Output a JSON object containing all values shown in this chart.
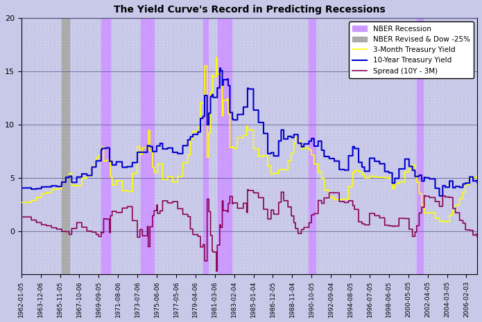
{
  "title": "The Yield Curve's Record in Predicting Recessions",
  "background_color": "#c8c8e8",
  "plot_background": "#c8c8e8",
  "ylim": [
    -4,
    20
  ],
  "yticks": [
    0,
    5,
    10,
    15,
    20
  ],
  "recession_color": "#cc99ff",
  "revised_recession_color": "#aaaaaa",
  "line_3m_color": "#ffff00",
  "line_10y_color": "#0000cc",
  "line_spread_color": "#880055",
  "legend_labels": [
    "NBER Recession",
    "NBER Revised & Dow -25%",
    "3-Month Treasury Yield",
    "10-Year Treasury Yield",
    "Spread (10Y - 3M)"
  ],
  "nber_recessions": [
    [
      "1969-12-01",
      "1970-11-01"
    ],
    [
      "1973-11-01",
      "1975-03-01"
    ],
    [
      "1980-01-01",
      "1980-07-01"
    ],
    [
      "1981-07-01",
      "1982-11-01"
    ],
    [
      "1990-07-01",
      "1991-03-01"
    ],
    [
      "2001-03-01",
      "2001-11-01"
    ]
  ],
  "revised_recessions": [
    [
      "1966-01-01",
      "1966-10-01"
    ]
  ],
  "xtick_dates": [
    "1962-01-05",
    "1963-12-06",
    "1965-11-05",
    "1967-10-06",
    "1969-09-05",
    "1971-08-06",
    "1973-07-06",
    "1975-06-06",
    "1977-05-06",
    "1979-04-06",
    "1981-03-06",
    "1983-02-04",
    "1985-01-04",
    "1986-12-05",
    "1988-11-04",
    "1990-10-05",
    "1992-09-04",
    "1994-08-05",
    "1996-07-05",
    "1998-06-05",
    "2000-05-05",
    "2002-04-05",
    "2004-03-05",
    "2006-02-03"
  ]
}
